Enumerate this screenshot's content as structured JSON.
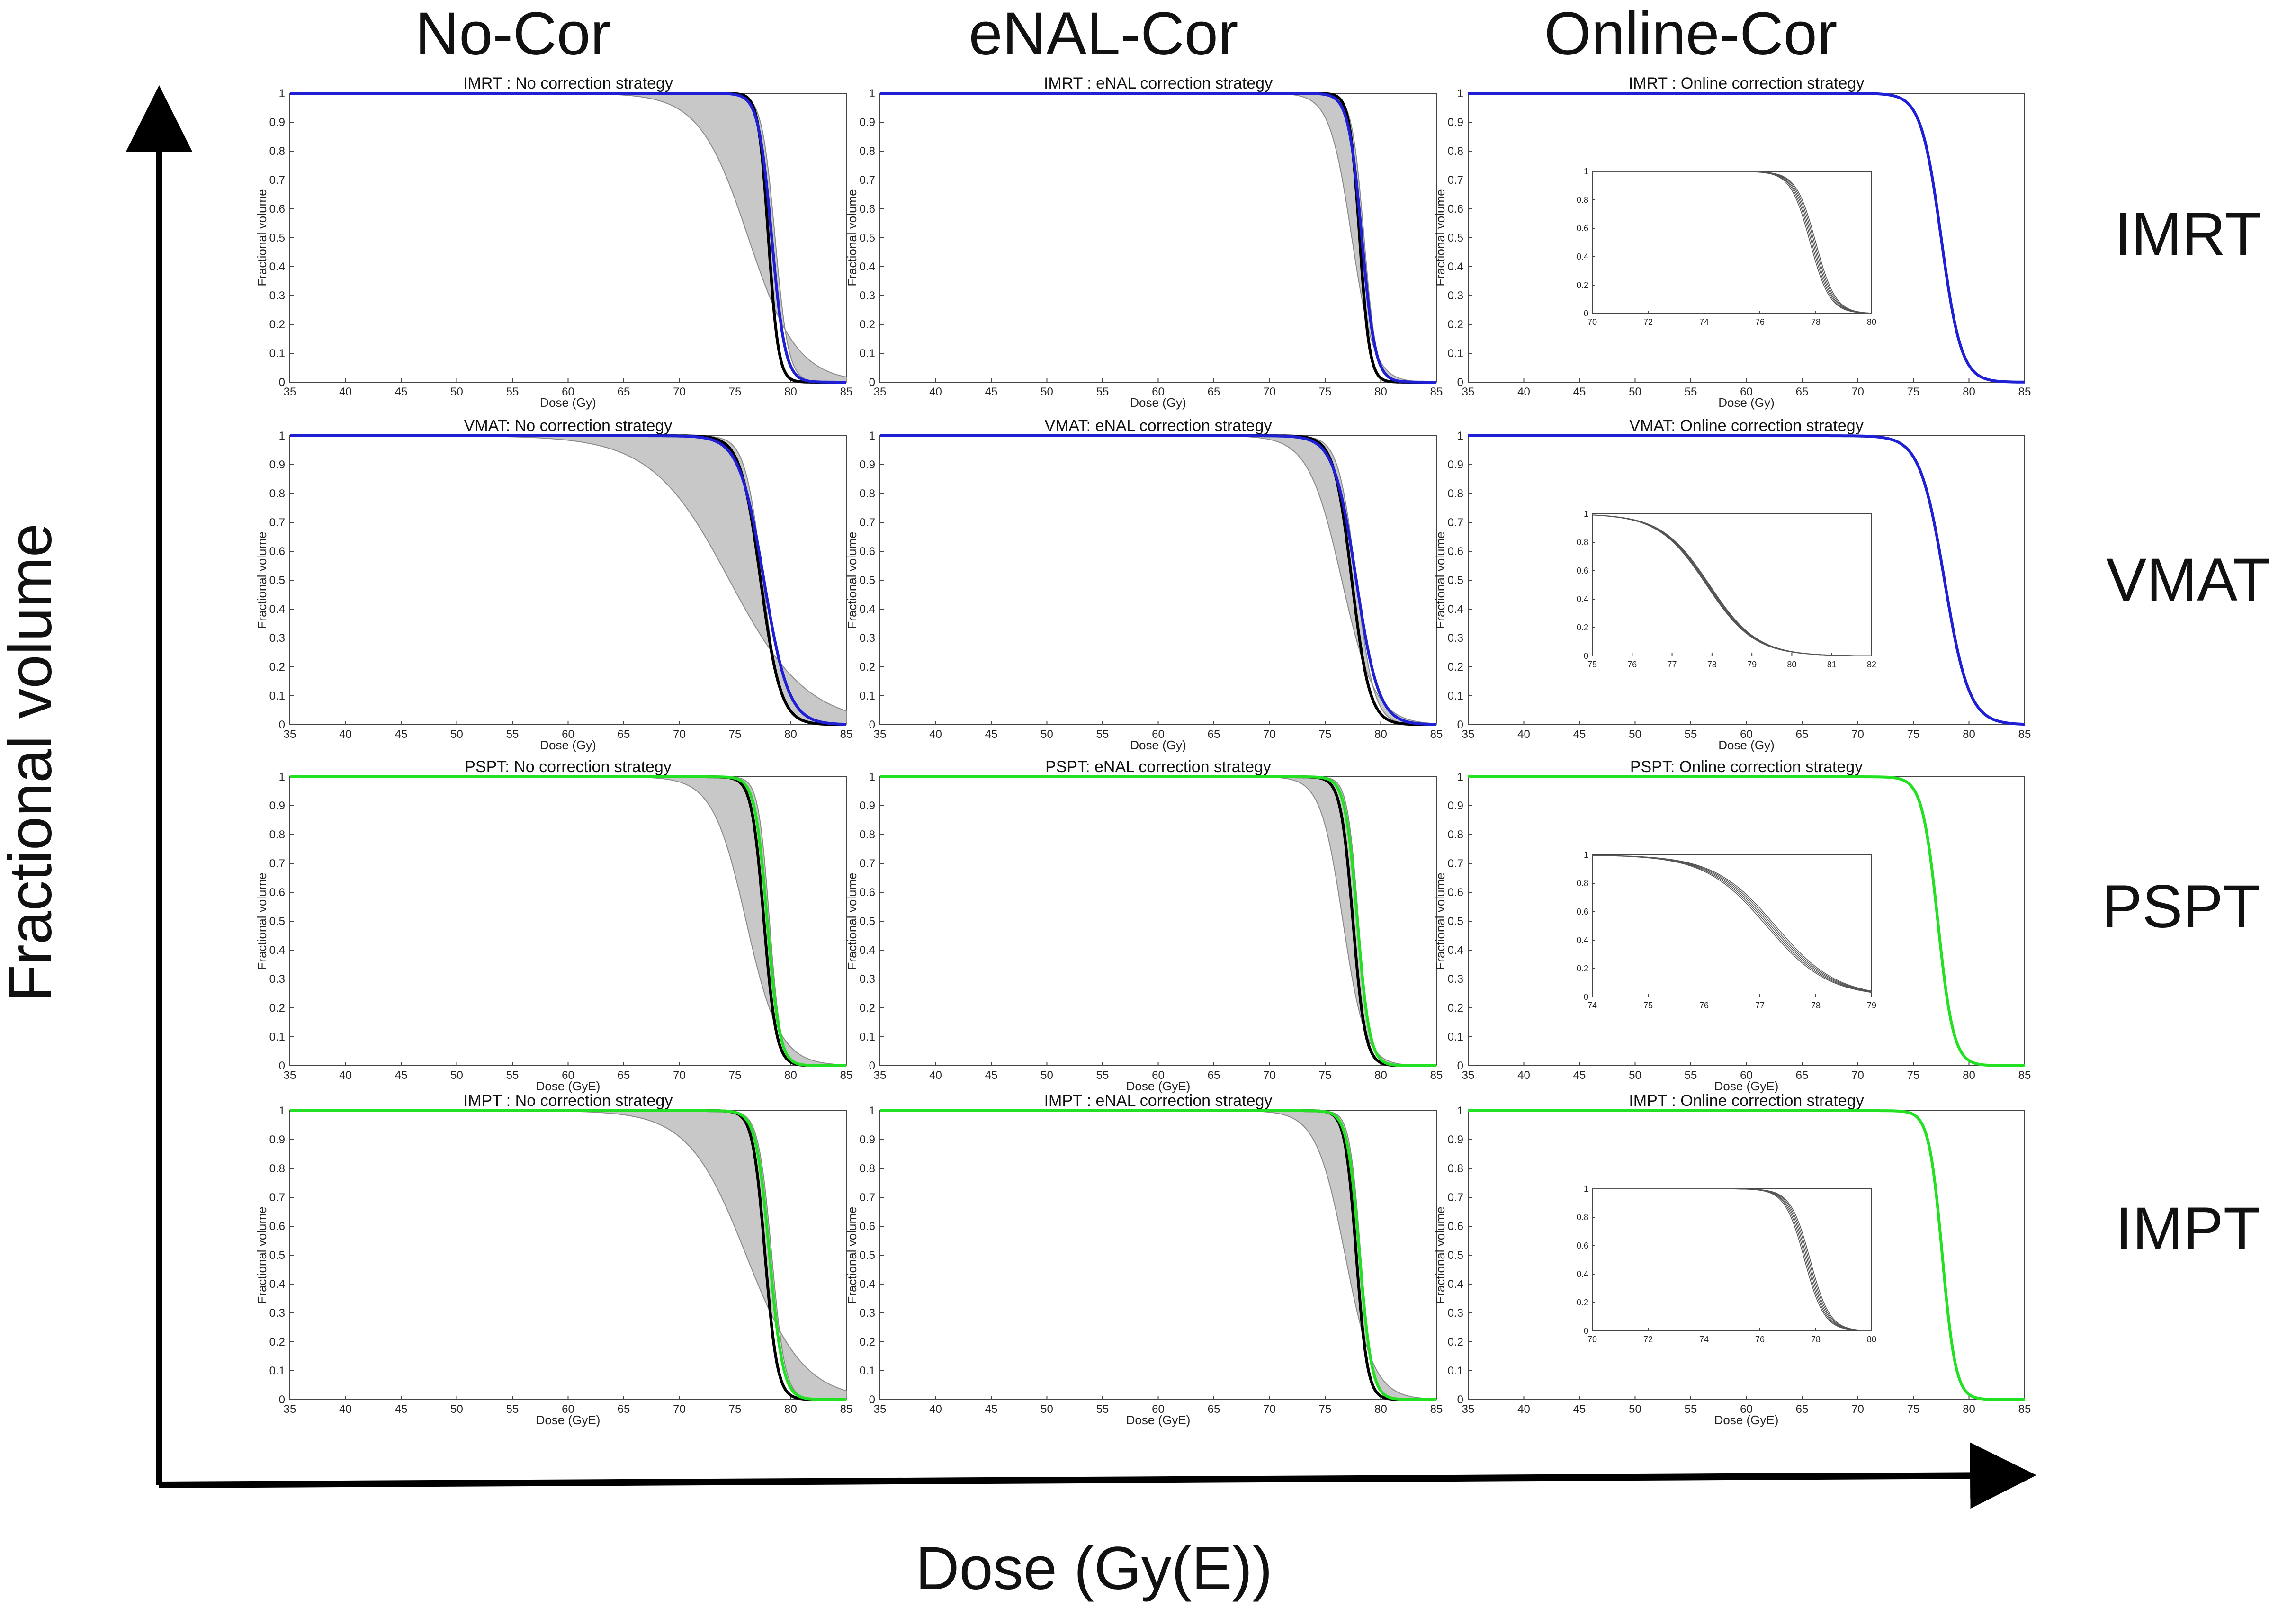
{
  "figure": {
    "column_headers": [
      "No-Cor",
      "eNAL-Cor",
      "Online-Cor"
    ],
    "row_labels": [
      "IMRT",
      "VMAT",
      "PSPT",
      "IMPT"
    ],
    "global_y_label": "Fractional volume",
    "global_x_label": "Dose (Gy(E))"
  },
  "colors": {
    "photon": "#1f1fd6",
    "proton": "#22e022",
    "nominal": "#000000",
    "band_fill": "#c8c8c8",
    "band_edge": "#8a8a8a"
  },
  "chart_data": [
    {
      "type": "area",
      "title": "IMRT   : No correction strategy",
      "xlabel": "Dose (Gy)",
      "ylabel": "Fractional volume",
      "xlim": [
        35,
        85
      ],
      "ylim": [
        0,
        1
      ],
      "xticks": [
        "35",
        "40",
        "45",
        "50",
        "55",
        "60",
        "65",
        "70",
        "75",
        "80",
        "85"
      ],
      "yticks": [
        "0",
        "0.1",
        "0.2",
        "0.3",
        "0.4",
        "0.5",
        "0.6",
        "0.7",
        "0.8",
        "0.9",
        "1"
      ],
      "series": [
        {
          "kind": "band",
          "lower": {
            "d50": 76.2,
            "w": 2.2
          },
          "upper": {
            "d50": 78.6,
            "w": 0.6
          }
        },
        {
          "kind": "nominal",
          "d50": 78.0,
          "w": 0.45
        },
        {
          "kind": "planned",
          "d50": 78.3,
          "w": 0.6
        }
      ]
    },
    {
      "type": "area",
      "title": "IMRT   : eNAL correction strategy",
      "xlabel": "Dose (Gy)",
      "ylabel": "Fractional volume",
      "xlim": [
        35,
        85
      ],
      "ylim": [
        0,
        1
      ],
      "xticks": [
        "35",
        "40",
        "45",
        "50",
        "55",
        "60",
        "65",
        "70",
        "75",
        "80",
        "85"
      ],
      "yticks": [
        "0",
        "0.1",
        "0.2",
        "0.3",
        "0.4",
        "0.5",
        "0.6",
        "0.7",
        "0.8",
        "0.9",
        "1"
      ],
      "series": [
        {
          "kind": "band",
          "lower": {
            "d50": 77.4,
            "w": 1.0
          },
          "upper": {
            "d50": 78.5,
            "w": 0.55
          }
        },
        {
          "kind": "nominal",
          "d50": 78.1,
          "w": 0.45
        },
        {
          "kind": "planned",
          "d50": 78.3,
          "w": 0.6
        }
      ]
    },
    {
      "type": "area",
      "title": "IMRT   : Online correction strategy",
      "xlabel": "Dose (Gy)",
      "ylabel": "Fractional volume",
      "xlim": [
        35,
        85
      ],
      "ylim": [
        0,
        1
      ],
      "xticks": [
        "35",
        "40",
        "45",
        "50",
        "55",
        "60",
        "65",
        "70",
        "75",
        "80",
        "85"
      ],
      "yticks": [
        "0",
        "0.1",
        "0.2",
        "0.3",
        "0.4",
        "0.5",
        "0.6",
        "0.7",
        "0.8",
        "0.9",
        "1"
      ],
      "series": [
        {
          "kind": "planned",
          "d50": 77.5,
          "w": 0.9
        }
      ],
      "inset": {
        "xlim": [
          70,
          80
        ],
        "ylim": [
          0,
          1
        ],
        "xticks": [
          "70",
          "72",
          "74",
          "76",
          "78",
          "80"
        ],
        "yticks": [
          "0",
          "0.2",
          "0.4",
          "0.6",
          "0.8",
          "1"
        ],
        "d50": 77.9,
        "w": 0.35,
        "spread": 0.1
      }
    },
    {
      "type": "area",
      "title": "VMAT: No correction strategy",
      "xlabel": "Dose (Gy)",
      "ylabel": "Fractional volume",
      "xlim": [
        35,
        85
      ],
      "ylim": [
        0,
        1
      ],
      "xticks": [
        "35",
        "40",
        "45",
        "50",
        "55",
        "60",
        "65",
        "70",
        "75",
        "80",
        "85"
      ],
      "yticks": [
        "0",
        "0.1",
        "0.2",
        "0.3",
        "0.4",
        "0.5",
        "0.6",
        "0.7",
        "0.8",
        "0.9",
        "1"
      ],
      "series": [
        {
          "kind": "band",
          "lower": {
            "d50": 74.5,
            "w": 3.5
          },
          "upper": {
            "d50": 77.5,
            "w": 0.8
          }
        },
        {
          "kind": "nominal",
          "d50": 77.3,
          "w": 0.9
        },
        {
          "kind": "planned",
          "d50": 77.6,
          "w": 1.1
        }
      ]
    },
    {
      "type": "area",
      "title": "VMAT: eNAL correction strategy",
      "xlabel": "Dose (Gy)",
      "ylabel": "Fractional volume",
      "xlim": [
        35,
        85
      ],
      "ylim": [
        0,
        1
      ],
      "xticks": [
        "35",
        "40",
        "45",
        "50",
        "55",
        "60",
        "65",
        "70",
        "75",
        "80",
        "85"
      ],
      "yticks": [
        "0",
        "0.1",
        "0.2",
        "0.3",
        "0.4",
        "0.5",
        "0.6",
        "0.7",
        "0.8",
        "0.9",
        "1"
      ],
      "series": [
        {
          "kind": "band",
          "lower": {
            "d50": 76.5,
            "w": 1.5
          },
          "upper": {
            "d50": 77.8,
            "w": 0.8
          }
        },
        {
          "kind": "nominal",
          "d50": 77.4,
          "w": 0.8
        },
        {
          "kind": "planned",
          "d50": 77.8,
          "w": 1.0
        }
      ]
    },
    {
      "type": "area",
      "title": "VMAT: Online correction strategy",
      "xlabel": "Dose (Gy)",
      "ylabel": "Fractional volume",
      "xlim": [
        35,
        85
      ],
      "ylim": [
        0,
        1
      ],
      "xticks": [
        "35",
        "40",
        "45",
        "50",
        "55",
        "60",
        "65",
        "70",
        "75",
        "80",
        "85"
      ],
      "yticks": [
        "0",
        "0.1",
        "0.2",
        "0.3",
        "0.4",
        "0.5",
        "0.6",
        "0.7",
        "0.8",
        "0.9",
        "1"
      ],
      "series": [
        {
          "kind": "planned",
          "d50": 77.8,
          "w": 1.1
        }
      ],
      "inset": {
        "xlim": [
          75,
          82
        ],
        "ylim": [
          0,
          1
        ],
        "xticks": [
          "75",
          "76",
          "77",
          "78",
          "79",
          "80",
          "81",
          "82"
        ],
        "yticks": [
          "0",
          "0.2",
          "0.4",
          "0.6",
          "0.8",
          "1"
        ],
        "d50": 77.9,
        "w": 0.6,
        "spread": 0.04
      }
    },
    {
      "type": "area",
      "title": "PSPT: No correction strategy",
      "xlabel": "Dose (GyE)",
      "ylabel": "Fractional volume",
      "xlim": [
        35,
        85
      ],
      "ylim": [
        0,
        1
      ],
      "xticks": [
        "35",
        "40",
        "45",
        "50",
        "55",
        "60",
        "65",
        "70",
        "75",
        "80",
        "85"
      ],
      "yticks": [
        "0",
        "0.1",
        "0.2",
        "0.3",
        "0.4",
        "0.5",
        "0.6",
        "0.7",
        "0.8",
        "0.9",
        "1"
      ],
      "series": [
        {
          "kind": "band",
          "lower": {
            "d50": 76.0,
            "w": 1.5
          },
          "upper": {
            "d50": 78.1,
            "w": 0.5
          }
        },
        {
          "kind": "nominal",
          "d50": 77.6,
          "w": 0.55
        },
        {
          "kind": "planned",
          "d50": 77.9,
          "w": 0.55
        }
      ]
    },
    {
      "type": "area",
      "title": "PSPT: eNAL correction strategy",
      "xlabel": "Dose (GyE)",
      "ylabel": "Fractional volume",
      "xlim": [
        35,
        85
      ],
      "ylim": [
        0,
        1
      ],
      "xticks": [
        "35",
        "40",
        "45",
        "50",
        "55",
        "60",
        "65",
        "70",
        "75",
        "80",
        "85"
      ],
      "yticks": [
        "0",
        "0.1",
        "0.2",
        "0.3",
        "0.4",
        "0.5",
        "0.6",
        "0.7",
        "0.8",
        "0.9",
        "1"
      ],
      "series": [
        {
          "kind": "band",
          "lower": {
            "d50": 76.6,
            "w": 1.0
          },
          "upper": {
            "d50": 78.0,
            "w": 0.5
          }
        },
        {
          "kind": "nominal",
          "d50": 77.5,
          "w": 0.55
        },
        {
          "kind": "planned",
          "d50": 77.9,
          "w": 0.55
        }
      ]
    },
    {
      "type": "area",
      "title": "PSPT: Online correction strategy",
      "xlabel": "Dose (GyE)",
      "ylabel": "Fractional volume",
      "xlim": [
        35,
        85
      ],
      "ylim": [
        0,
        1
      ],
      "xticks": [
        "35",
        "40",
        "45",
        "50",
        "55",
        "60",
        "65",
        "70",
        "75",
        "80",
        "85"
      ],
      "yticks": [
        "0",
        "0.1",
        "0.2",
        "0.3",
        "0.4",
        "0.5",
        "0.6",
        "0.7",
        "0.8",
        "0.9",
        "1"
      ],
      "series": [
        {
          "kind": "planned",
          "d50": 77.2,
          "w": 0.7
        }
      ],
      "inset": {
        "xlim": [
          74,
          79
        ],
        "ylim": [
          0,
          1
        ],
        "xticks": [
          "74",
          "75",
          "76",
          "77",
          "78",
          "79"
        ],
        "yticks": [
          "0",
          "0.2",
          "0.4",
          "0.6",
          "0.8",
          "1"
        ],
        "d50": 77.2,
        "w": 0.55,
        "spread": 0.08
      }
    },
    {
      "type": "area",
      "title": "IMPT   : No correction strategy",
      "xlabel": "Dose (GyE)",
      "ylabel": "Fractional volume",
      "xlim": [
        35,
        85
      ],
      "ylim": [
        0,
        1
      ],
      "xticks": [
        "35",
        "40",
        "45",
        "50",
        "55",
        "60",
        "65",
        "70",
        "75",
        "80",
        "85"
      ],
      "yticks": [
        "0",
        "0.1",
        "0.2",
        "0.3",
        "0.4",
        "0.5",
        "0.6",
        "0.7",
        "0.8",
        "0.9",
        "1"
      ],
      "series": [
        {
          "kind": "band",
          "lower": {
            "d50": 76.0,
            "w": 2.6
          },
          "upper": {
            "d50": 78.3,
            "w": 0.6
          }
        },
        {
          "kind": "nominal",
          "d50": 77.7,
          "w": 0.55
        },
        {
          "kind": "planned",
          "d50": 78.1,
          "w": 0.6
        }
      ]
    },
    {
      "type": "area",
      "title": "IMPT   : eNAL correction strategy",
      "xlabel": "Dose (GyE)",
      "ylabel": "Fractional volume",
      "xlim": [
        35,
        85
      ],
      "ylim": [
        0,
        1
      ],
      "xticks": [
        "35",
        "40",
        "45",
        "50",
        "55",
        "60",
        "65",
        "70",
        "75",
        "80",
        "85"
      ],
      "yticks": [
        "0",
        "0.1",
        "0.2",
        "0.3",
        "0.4",
        "0.5",
        "0.6",
        "0.7",
        "0.8",
        "0.9",
        "1"
      ],
      "series": [
        {
          "kind": "band",
          "lower": {
            "d50": 76.8,
            "w": 1.3
          },
          "upper": {
            "d50": 78.2,
            "w": 0.5
          }
        },
        {
          "kind": "nominal",
          "d50": 77.8,
          "w": 0.5
        },
        {
          "kind": "planned",
          "d50": 78.1,
          "w": 0.55
        }
      ]
    },
    {
      "type": "area",
      "title": "IMPT   : Online correction strategy",
      "xlabel": "Dose (GyE)",
      "ylabel": "Fractional volume",
      "xlim": [
        35,
        85
      ],
      "ylim": [
        0,
        1
      ],
      "xticks": [
        "35",
        "40",
        "45",
        "50",
        "55",
        "60",
        "65",
        "70",
        "75",
        "80",
        "85"
      ],
      "yticks": [
        "0",
        "0.1",
        "0.2",
        "0.3",
        "0.4",
        "0.5",
        "0.6",
        "0.7",
        "0.8",
        "0.9",
        "1"
      ],
      "series": [
        {
          "kind": "planned",
          "d50": 77.6,
          "w": 0.6
        }
      ],
      "inset": {
        "xlim": [
          70,
          80
        ],
        "ylim": [
          0,
          1
        ],
        "xticks": [
          "70",
          "72",
          "74",
          "76",
          "78",
          "80"
        ],
        "yticks": [
          "0",
          "0.2",
          "0.4",
          "0.6",
          "0.8",
          "1"
        ],
        "d50": 77.7,
        "w": 0.35,
        "spread": 0.1
      }
    }
  ]
}
